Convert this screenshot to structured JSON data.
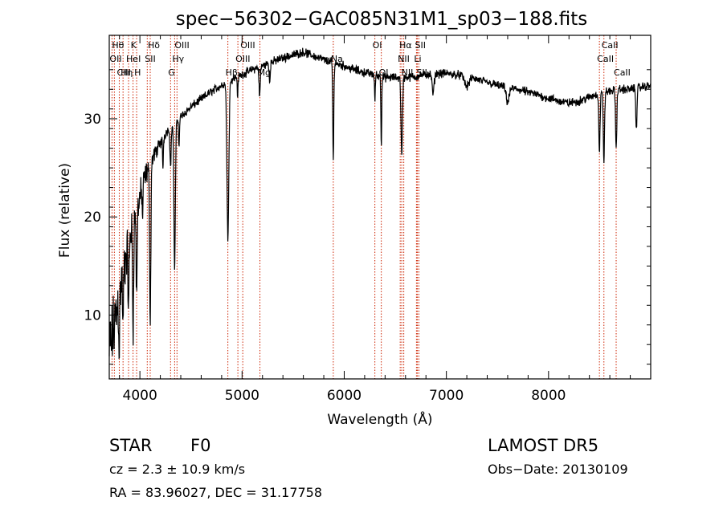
{
  "chart_data": {
    "type": "line",
    "title": "spec−56302−GAC085N31M1_sp03−188.fits",
    "xlabel": "Wavelength (Å)",
    "ylabel": "Flux (relative)",
    "xlim": [
      3700,
      9000
    ],
    "ylim": [
      3.5,
      38.5
    ],
    "xticks": [
      4000,
      5000,
      6000,
      7000,
      8000
    ],
    "yticks": [
      10,
      20,
      30
    ],
    "grid": false,
    "line_color": "#000000",
    "marker_color": "#cc2200",
    "continuum": [
      [
        3700,
        6
      ],
      [
        3750,
        9
      ],
      [
        3800,
        12
      ],
      [
        3850,
        15
      ],
      [
        3900,
        18
      ],
      [
        3950,
        20
      ],
      [
        4000,
        22
      ],
      [
        4050,
        24
      ],
      [
        4100,
        25.5
      ],
      [
        4150,
        26.5
      ],
      [
        4200,
        27.5
      ],
      [
        4250,
        28.5
      ],
      [
        4300,
        29.2
      ],
      [
        4400,
        30.2
      ],
      [
        4500,
        31.2
      ],
      [
        4600,
        32
      ],
      [
        4700,
        32.8
      ],
      [
        4800,
        33.4
      ],
      [
        4900,
        34
      ],
      [
        5000,
        34.5
      ],
      [
        5100,
        35
      ],
      [
        5200,
        35.4
      ],
      [
        5300,
        35.8
      ],
      [
        5400,
        36.2
      ],
      [
        5500,
        36.5
      ],
      [
        5600,
        36.8
      ],
      [
        5700,
        36.4
      ],
      [
        5800,
        36
      ],
      [
        5900,
        35.7
      ],
      [
        6000,
        35.4
      ],
      [
        6100,
        35
      ],
      [
        6200,
        34.7
      ],
      [
        6300,
        34.5
      ],
      [
        6400,
        34.2
      ],
      [
        6500,
        34.2
      ],
      [
        6600,
        34.2
      ],
      [
        6700,
        34.3
      ],
      [
        6800,
        34.5
      ],
      [
        6900,
        34.6
      ],
      [
        7000,
        34.6
      ],
      [
        7100,
        34.5
      ],
      [
        7200,
        34.3
      ],
      [
        7300,
        34
      ],
      [
        7400,
        33.7
      ],
      [
        7500,
        33.4
      ],
      [
        7600,
        33.2
      ],
      [
        7700,
        33
      ],
      [
        7800,
        32.7
      ],
      [
        7900,
        32.4
      ],
      [
        8000,
        32.1
      ],
      [
        8100,
        31.8
      ],
      [
        8200,
        31.6
      ],
      [
        8300,
        31.8
      ],
      [
        8400,
        32.2
      ],
      [
        8500,
        32.6
      ],
      [
        8600,
        32.8
      ],
      [
        8700,
        33
      ],
      [
        8800,
        33
      ],
      [
        8900,
        33.2
      ],
      [
        9000,
        33.4
      ]
    ],
    "absorption": [
      {
        "center": 3798,
        "depth": 5,
        "width": 4
      },
      {
        "center": 3835,
        "depth": 6,
        "width": 4
      },
      {
        "center": 3889,
        "depth": 7,
        "width": 5
      },
      {
        "center": 3933,
        "depth": 11,
        "width": 5
      },
      {
        "center": 3968,
        "depth": 9,
        "width": 5
      },
      {
        "center": 4026,
        "depth": 3,
        "width": 4
      },
      {
        "center": 4101,
        "depth": 16,
        "width": 6
      },
      {
        "center": 4226,
        "depth": 3,
        "width": 4
      },
      {
        "center": 4300,
        "depth": 4,
        "width": 6
      },
      {
        "center": 4340,
        "depth": 15,
        "width": 7
      },
      {
        "center": 4383,
        "depth": 3,
        "width": 4
      },
      {
        "center": 4861,
        "depth": 16,
        "width": 9
      },
      {
        "center": 4957,
        "depth": 2,
        "width": 4
      },
      {
        "center": 5172,
        "depth": 3,
        "width": 6
      },
      {
        "center": 5270,
        "depth": 2,
        "width": 5
      },
      {
        "center": 5893,
        "depth": 10,
        "width": 5
      },
      {
        "center": 6300,
        "depth": 2.5,
        "width": 4
      },
      {
        "center": 6363,
        "depth": 7,
        "width": 4
      },
      {
        "center": 6563,
        "depth": 8,
        "width": 7
      },
      {
        "center": 6870,
        "depth": 2,
        "width": 10
      },
      {
        "center": 7200,
        "depth": 1,
        "width": 20
      },
      {
        "center": 7600,
        "depth": 1.5,
        "width": 15
      },
      {
        "center": 8498,
        "depth": 6,
        "width": 6
      },
      {
        "center": 8542,
        "depth": 7,
        "width": 6
      },
      {
        "center": 8662,
        "depth": 6,
        "width": 6
      },
      {
        "center": 8860,
        "depth": 4,
        "width": 6
      }
    ],
    "noise": {
      "blue_edge_amplitude": 4.5,
      "blue_edge_end": 4300,
      "base_amplitude": 0.55
    },
    "line_markers": [
      {
        "wl": 3727,
        "label": "OII",
        "row": 1
      },
      {
        "wl": 3750,
        "label": "Hθ",
        "row": 0
      },
      {
        "wl": 3798,
        "label": "CIII",
        "row": 2
      },
      {
        "wl": 3835,
        "label": "Hη",
        "row": 2
      },
      {
        "wl": 3889,
        "label": "HeI",
        "row": 1
      },
      {
        "wl": 3933,
        "label": "K",
        "row": 0
      },
      {
        "wl": 3968,
        "label": "H",
        "row": 2
      },
      {
        "wl": 4072,
        "label": "SII",
        "row": 1
      },
      {
        "wl": 4101,
        "label": "Hδ",
        "row": 0
      },
      {
        "wl": 4300,
        "label": "G",
        "row": 2
      },
      {
        "wl": 4340,
        "label": "Hγ",
        "row": 1
      },
      {
        "wl": 4363,
        "label": "OIII",
        "row": 0
      },
      {
        "wl": 4861,
        "label": "Hβ",
        "row": 2
      },
      {
        "wl": 4959,
        "label": "OIII",
        "row": 1
      },
      {
        "wl": 5007,
        "label": "OIII",
        "row": 0
      },
      {
        "wl": 5175,
        "label": "Mg",
        "row": 2
      },
      {
        "wl": 5893,
        "label": "Na",
        "row": 1
      },
      {
        "wl": 6300,
        "label": "OI",
        "row": 0
      },
      {
        "wl": 6363,
        "label": "OI",
        "row": 2
      },
      {
        "wl": 6548,
        "label": "NII",
        "row": 1
      },
      {
        "wl": 6563,
        "label": "Hα",
        "row": 0
      },
      {
        "wl": 6583,
        "label": "NII",
        "row": 2
      },
      {
        "wl": 6716,
        "label": "SII",
        "row": 0
      },
      {
        "wl": 6731,
        "label": "SII",
        "row": 2
      },
      {
        "wl": 6707,
        "label": "Li",
        "row": 1
      },
      {
        "wl": 8498,
        "label": "CaII",
        "row": 1
      },
      {
        "wl": 8542,
        "label": "CaII",
        "row": 0
      },
      {
        "wl": 8662,
        "label": "CaII",
        "row": 2
      }
    ]
  },
  "footer": {
    "class_label": "STAR",
    "subclass": "F0",
    "survey": "LAMOST DR5",
    "cz": "cz = 2.3 ± 10.9 km/s",
    "obs_date": "Obs−Date: 20130109",
    "coords": "RA =  83.96027, DEC =  31.17758"
  }
}
